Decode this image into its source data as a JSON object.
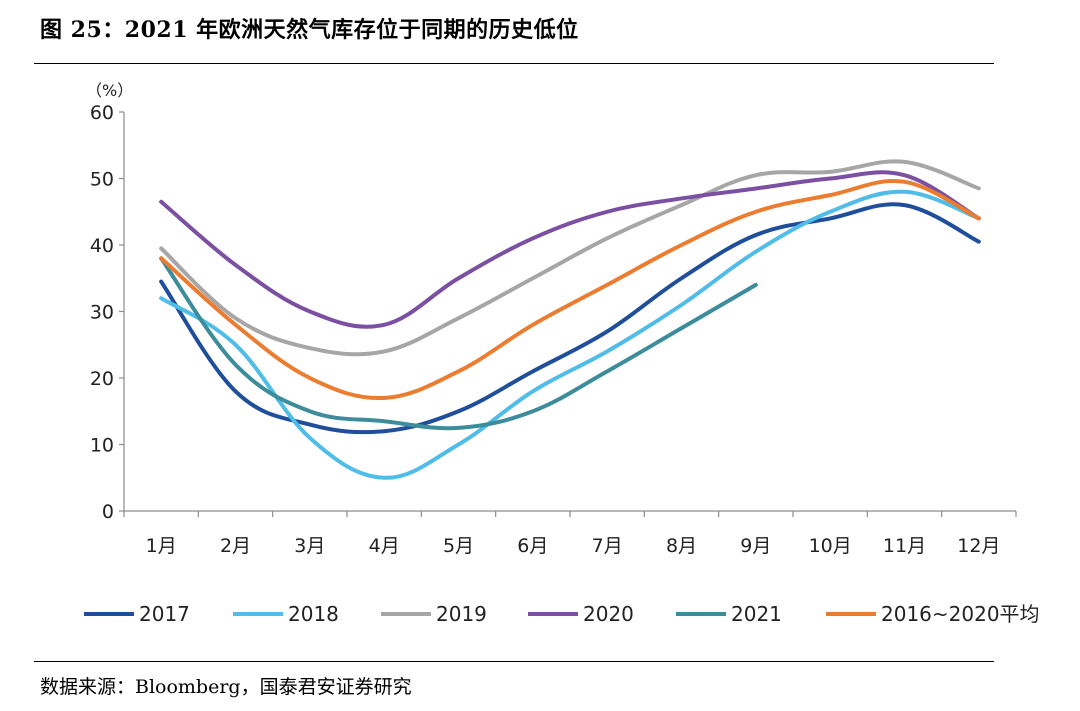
{
  "header": {
    "title": "图 25：2021 年欧洲天然气库存位于同期的历史低位"
  },
  "footer": {
    "source": "数据来源：Bloomberg，国泰君安证券研究"
  },
  "chart_data": {
    "type": "line",
    "title": "",
    "xlabel": "",
    "ylabel": "（%）",
    "ylim": [
      0,
      60
    ],
    "yticks": [
      0,
      10,
      20,
      30,
      40,
      50,
      60
    ],
    "categories": [
      "1月",
      "2月",
      "3月",
      "4月",
      "5月",
      "6月",
      "7月",
      "8月",
      "9月",
      "10月",
      "11月",
      "12月"
    ],
    "grid": false,
    "legend_position": "bottom",
    "series": [
      {
        "name": "2017",
        "color": "#1f4e9b",
        "values": [
          34.5,
          18,
          13,
          12,
          15,
          21,
          27,
          35,
          41.5,
          44,
          46,
          40.5
        ]
      },
      {
        "name": "2018",
        "color": "#4fbde8",
        "values": [
          32,
          25,
          11,
          5,
          10,
          18,
          24,
          31,
          39,
          45,
          48,
          44
        ]
      },
      {
        "name": "2019",
        "color": "#a6a6a6",
        "values": [
          39.5,
          29,
          24.5,
          24,
          29,
          35,
          41,
          46,
          50.5,
          51,
          52.5,
          48.5
        ]
      },
      {
        "name": "2020",
        "color": "#7b4fa2",
        "values": [
          46.5,
          37,
          30,
          28,
          35,
          41,
          45,
          47,
          48.5,
          50,
          50.5,
          44
        ]
      },
      {
        "name": "2021",
        "color": "#3c8c9c",
        "values": [
          38,
          22,
          15,
          13.5,
          12.5,
          15,
          21,
          27.5,
          34,
          null,
          null,
          null
        ]
      },
      {
        "name": "2016~2020平均",
        "color": "#ec7c2f",
        "values": [
          38,
          28,
          20,
          17,
          21,
          28,
          34,
          40,
          45,
          47.5,
          49.5,
          44
        ]
      }
    ]
  }
}
